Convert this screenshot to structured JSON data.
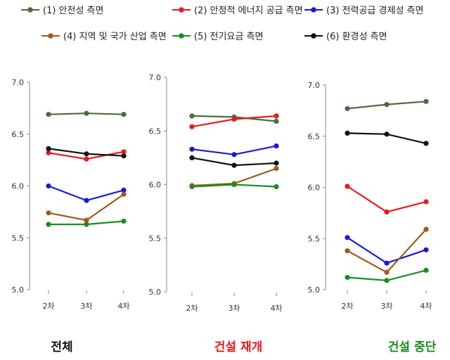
{
  "chart_data": {
    "type": "line",
    "legend": {
      "placement": "top",
      "entries": [
        {
          "label": "(1) 안전성 측면",
          "color": "#4f6b3f"
        },
        {
          "label": "(2) 안정적 에너지 공급 측면",
          "color": "#e8191c"
        },
        {
          "label": "(3) 전력공급 경제성 측면",
          "color": "#1a18d6"
        },
        {
          "label": "(4) 지역 및 국가 산업 측면",
          "color": "#a4581a"
        },
        {
          "label": "(5) 전기요금 측면",
          "color": "#1a8c1f"
        },
        {
          "label": "(6) 환경성 측면",
          "color": "#111111"
        }
      ]
    },
    "panels": [
      {
        "title": "전체",
        "title_color": "#111111",
        "categories": [
          "2차",
          "3차",
          "4차"
        ],
        "ylim": [
          5.0,
          7.0
        ],
        "yticks": [
          "5.0",
          "5.5",
          "6.0",
          "6.5",
          "7.0"
        ],
        "grid": false,
        "series": [
          {
            "name": "(1) 안전성 측면",
            "values": [
              6.69,
              6.7,
              6.69
            ]
          },
          {
            "name": "(2) 안정적 에너지 공급 측면",
            "values": [
              6.32,
              6.26,
              6.33
            ]
          },
          {
            "name": "(3) 전력공급 경제성 측면",
            "values": [
              6.0,
              5.86,
              5.96
            ]
          },
          {
            "name": "(4) 지역 및 국가 산업 측면",
            "values": [
              5.74,
              5.67,
              5.92
            ]
          },
          {
            "name": "(5) 전기요금 측면",
            "values": [
              5.63,
              5.63,
              5.66
            ]
          },
          {
            "name": "(6) 환경성 측면",
            "values": [
              6.36,
              6.31,
              6.29
            ]
          }
        ]
      },
      {
        "title": "건설 재개",
        "title_color": "#e8191c",
        "categories": [
          "2차",
          "3차",
          "4차"
        ],
        "ylim": [
          5.0,
          7.0
        ],
        "yticks": [
          "5.0",
          "5.5",
          "6.0",
          "6.5",
          "7.0"
        ],
        "grid": false,
        "series": [
          {
            "name": "(1) 안전성 측면",
            "values": [
              6.64,
              6.63,
              6.59
            ]
          },
          {
            "name": "(2) 안정적 에너지 공급 측면",
            "values": [
              6.54,
              6.61,
              6.64
            ]
          },
          {
            "name": "(3) 전력공급 경제성 측면",
            "values": [
              6.33,
              6.28,
              6.36
            ]
          },
          {
            "name": "(4) 지역 및 국가 산업 측면",
            "values": [
              5.99,
              6.01,
              6.15
            ]
          },
          {
            "name": "(5) 전기요금 측면",
            "values": [
              5.98,
              6.0,
              5.98
            ]
          },
          {
            "name": "(6) 환경성 측면",
            "values": [
              6.25,
              6.18,
              6.2
            ]
          }
        ]
      },
      {
        "title": "건설 중단",
        "title_color": "#1a8c1f",
        "categories": [
          "2차",
          "3차",
          "4차"
        ],
        "ylim": [
          5.0,
          7.0
        ],
        "yticks": [
          "5.0",
          "5.5",
          "6.0",
          "6.5",
          "7.0"
        ],
        "grid": false,
        "series": [
          {
            "name": "(1) 안전성 측면",
            "values": [
              6.77,
              6.81,
              6.84
            ]
          },
          {
            "name": "(2) 안정적 에너지 공급 측면",
            "values": [
              6.01,
              5.76,
              5.86
            ]
          },
          {
            "name": "(3) 전력공급 경제성 측면",
            "values": [
              5.51,
              5.26,
              5.39
            ]
          },
          {
            "name": "(4) 지역 및 국가 산업 측면",
            "values": [
              5.38,
              5.17,
              5.59
            ]
          },
          {
            "name": "(5) 전기요금 측면",
            "values": [
              5.12,
              5.09,
              5.19
            ]
          },
          {
            "name": "(6) 환경성 측면",
            "values": [
              6.53,
              6.52,
              6.43
            ]
          }
        ]
      }
    ]
  }
}
